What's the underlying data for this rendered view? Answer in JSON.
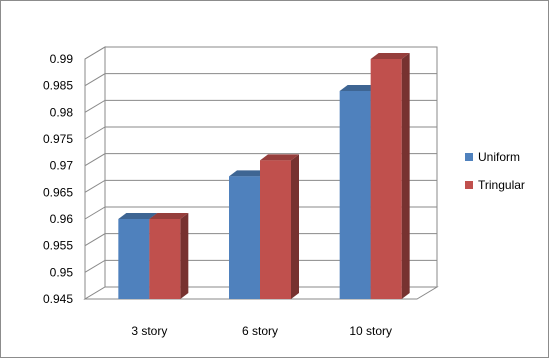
{
  "chart_data": {
    "type": "bar",
    "categories": [
      "3 story",
      "6 story",
      "10 story"
    ],
    "series": [
      {
        "name": "Uniform",
        "values": [
          0.96,
          0.968,
          0.984
        ],
        "color": "#4f81bd"
      },
      {
        "name": "Tringular",
        "values": [
          0.96,
          0.971,
          0.99
        ],
        "color": "#c0504d"
      }
    ],
    "title": "",
    "xlabel": "",
    "ylabel": "",
    "ylim": [
      0.945,
      0.99
    ],
    "yticks": [
      "0.945",
      "0.95",
      "0.955",
      "0.96",
      "0.965",
      "0.97",
      "0.975",
      "0.98",
      "0.985",
      "0.99"
    ],
    "grid": true,
    "style": "3d-column",
    "legend_position": "right"
  }
}
